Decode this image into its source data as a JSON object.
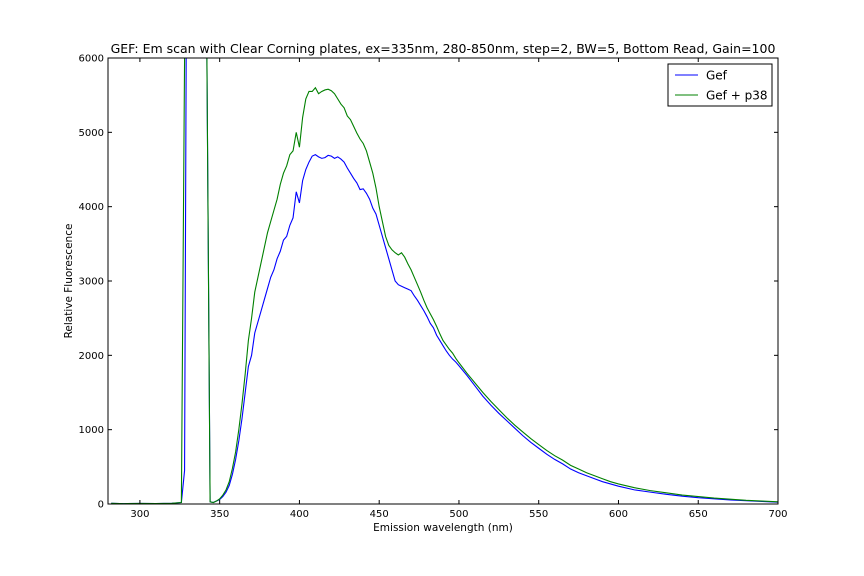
{
  "chart_data": {
    "type": "line",
    "title": "GEF: Em scan with Clear Corning plates, ex=335nm, 280-850nm, step=2, BW=5, Bottom Read, Gain=100",
    "xlabel": "Emission wavelength (nm)",
    "ylabel": "Relative Fluorescence",
    "xlim": [
      280,
      700
    ],
    "ylim": [
      0,
      6000
    ],
    "xticks": [
      300,
      350,
      400,
      450,
      500,
      550,
      600,
      650,
      700
    ],
    "yticks": [
      0,
      1000,
      2000,
      3000,
      4000,
      5000,
      6000
    ],
    "grid": false,
    "legend_position": "top-right",
    "series": [
      {
        "name": "Gef",
        "color": "#0000ff",
        "x": [
          282,
          290,
          300,
          310,
          320,
          326,
          328,
          329,
          342,
          344,
          346,
          348,
          350,
          352,
          354,
          356,
          358,
          360,
          362,
          364,
          366,
          368,
          370,
          372,
          374,
          376,
          378,
          380,
          382,
          384,
          386,
          388,
          390,
          392,
          394,
          396,
          398,
          400,
          402,
          404,
          406,
          408,
          410,
          412,
          414,
          416,
          418,
          420,
          422,
          424,
          426,
          428,
          430,
          432,
          434,
          436,
          438,
          440,
          442,
          444,
          446,
          448,
          450,
          452,
          454,
          456,
          458,
          460,
          462,
          464,
          466,
          468,
          470,
          472,
          474,
          476,
          478,
          480,
          482,
          484,
          486,
          488,
          490,
          492,
          494,
          496,
          498,
          500,
          505,
          510,
          515,
          520,
          525,
          530,
          535,
          540,
          545,
          550,
          555,
          560,
          565,
          570,
          575,
          580,
          585,
          590,
          595,
          600,
          610,
          620,
          630,
          640,
          650,
          660,
          670,
          680,
          690,
          700
        ],
        "y": [
          10,
          5,
          8,
          6,
          10,
          20,
          450,
          6000,
          6000,
          30,
          20,
          40,
          60,
          100,
          160,
          250,
          400,
          600,
          850,
          1150,
          1500,
          1850,
          2000,
          2300,
          2450,
          2600,
          2750,
          2900,
          3050,
          3150,
          3300,
          3400,
          3550,
          3600,
          3750,
          3850,
          4200,
          4050,
          4350,
          4500,
          4600,
          4680,
          4700,
          4670,
          4650,
          4660,
          4690,
          4680,
          4650,
          4670,
          4640,
          4600,
          4520,
          4450,
          4380,
          4320,
          4230,
          4240,
          4180,
          4100,
          3980,
          3900,
          3750,
          3600,
          3450,
          3300,
          3150,
          3000,
          2950,
          2930,
          2910,
          2890,
          2870,
          2800,
          2740,
          2670,
          2600,
          2520,
          2430,
          2370,
          2270,
          2200,
          2130,
          2060,
          2000,
          1950,
          1910,
          1860,
          1730,
          1590,
          1450,
          1330,
          1220,
          1120,
          1020,
          920,
          830,
          750,
          670,
          600,
          540,
          470,
          420,
          380,
          340,
          300,
          270,
          240,
          190,
          160,
          130,
          105,
          85,
          70,
          55,
          45,
          35,
          25
        ]
      },
      {
        "name": "Gef + p38",
        "color": "#008000",
        "x": [
          282,
          290,
          300,
          310,
          320,
          326,
          328,
          329,
          342,
          344,
          346,
          348,
          350,
          352,
          354,
          356,
          358,
          360,
          362,
          364,
          366,
          368,
          370,
          372,
          374,
          376,
          378,
          380,
          382,
          384,
          386,
          388,
          390,
          392,
          394,
          396,
          398,
          400,
          402,
          404,
          406,
          408,
          410,
          412,
          414,
          416,
          418,
          420,
          422,
          424,
          426,
          428,
          430,
          432,
          434,
          436,
          438,
          440,
          442,
          444,
          446,
          448,
          450,
          452,
          454,
          456,
          458,
          460,
          462,
          464,
          466,
          468,
          470,
          472,
          474,
          476,
          478,
          480,
          482,
          484,
          486,
          488,
          490,
          492,
          494,
          496,
          498,
          500,
          505,
          510,
          515,
          520,
          525,
          530,
          535,
          540,
          545,
          550,
          555,
          560,
          565,
          570,
          575,
          580,
          585,
          590,
          595,
          600,
          610,
          620,
          630,
          640,
          650,
          660,
          670,
          680,
          690,
          700
        ],
        "y": [
          10,
          5,
          8,
          6,
          10,
          20,
          6000,
          6000,
          6000,
          30,
          20,
          40,
          70,
          120,
          190,
          300,
          480,
          700,
          1000,
          1350,
          1750,
          2200,
          2500,
          2850,
          3050,
          3250,
          3450,
          3650,
          3800,
          3950,
          4100,
          4300,
          4450,
          4550,
          4700,
          4750,
          5000,
          4800,
          5200,
          5450,
          5550,
          5550,
          5600,
          5520,
          5550,
          5570,
          5580,
          5560,
          5520,
          5450,
          5380,
          5330,
          5220,
          5170,
          5080,
          4990,
          4910,
          4850,
          4750,
          4600,
          4450,
          4250,
          4000,
          3800,
          3600,
          3480,
          3420,
          3380,
          3350,
          3380,
          3320,
          3230,
          3150,
          3050,
          2950,
          2850,
          2740,
          2640,
          2560,
          2480,
          2390,
          2290,
          2200,
          2140,
          2080,
          2030,
          1960,
          1900,
          1760,
          1630,
          1500,
          1380,
          1270,
          1160,
          1060,
          970,
          880,
          800,
          720,
          650,
          590,
          520,
          470,
          420,
          380,
          340,
          300,
          270,
          220,
          180,
          150,
          120,
          100,
          80,
          65,
          50,
          40,
          30
        ]
      }
    ]
  }
}
